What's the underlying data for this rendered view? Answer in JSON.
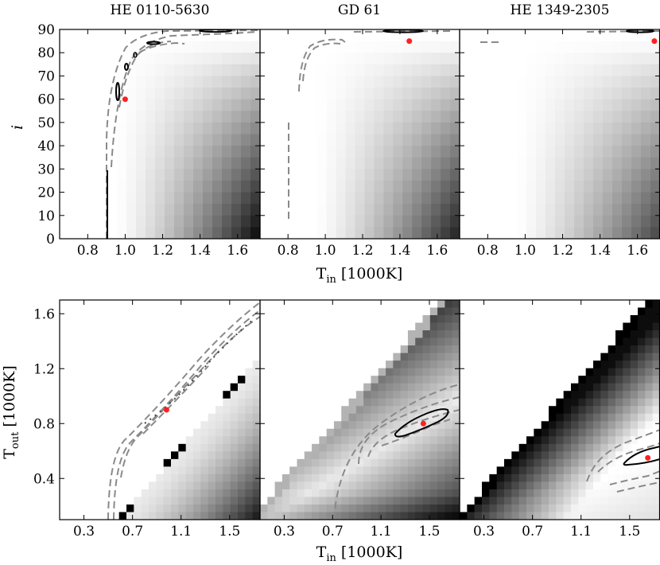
{
  "figure": {
    "top_row": {
      "panel_titles": [
        "HE 0110-5630",
        "GD 61",
        "HE 1349-2305"
      ],
      "y_label": "i",
      "x_label_main": "T",
      "x_label_sub": "in",
      "x_label_unit": " [1000K]"
    },
    "bottom_row": {
      "y_label_main": "T",
      "y_label_sub": "out",
      "y_label_unit": " [1000K]",
      "x_label_main": "T",
      "x_label_sub": "in",
      "x_label_unit": " [1000K]"
    }
  },
  "chart_data": [
    {
      "type": "heatmap",
      "row": "top",
      "panels": [
        "HE 0110-5630",
        "GD 61",
        "HE 1349-2305"
      ],
      "xlabel": "T_in [1000K]",
      "ylabel": "i",
      "xlim": [
        0.65,
        1.72
      ],
      "ylim": [
        0,
        90
      ],
      "xticks": [
        0.8,
        1.0,
        1.2,
        1.4,
        1.6
      ],
      "xtick_labels": [
        "0.8",
        "1.0",
        "1.2",
        "1.4",
        "1.6"
      ],
      "yticks": [
        0,
        10,
        20,
        30,
        40,
        50,
        60,
        70,
        80,
        90
      ],
      "ytick_labels": [
        "0",
        "10",
        "20",
        "30",
        "40",
        "50",
        "60",
        "70",
        "80",
        "90"
      ],
      "best_fit": [
        {
          "panel": "HE 0110-5630",
          "x": 1.0,
          "y": 60
        },
        {
          "panel": "GD 61",
          "x": 1.45,
          "y": 85
        },
        {
          "panel": "HE 1349-2305",
          "x": 1.69,
          "y": 85
        }
      ],
      "invalid_region_below_x": [
        0.96,
        0.85,
        0.0
      ]
    },
    {
      "type": "heatmap",
      "row": "bottom",
      "panels": [
        "HE 0110-5630",
        "GD 61",
        "HE 1349-2305"
      ],
      "xlabel": "T_in [1000K]",
      "ylabel": "T_out [1000K]",
      "xlim": [
        0.1,
        1.75
      ],
      "ylim": [
        0.1,
        1.7
      ],
      "xticks": [
        0.3,
        0.7,
        1.1,
        1.5
      ],
      "xtick_labels": [
        "0.3",
        "0.7",
        "1.1",
        "1.5"
      ],
      "yticks": [
        0.4,
        0.8,
        1.2,
        1.6
      ],
      "ytick_labels": [
        "0.4",
        "0.8",
        "1.2",
        "1.6"
      ],
      "best_fit": [
        {
          "panel": "HE 0110-5630",
          "x": 0.98,
          "y": 0.9
        },
        {
          "panel": "GD 61",
          "x": 1.45,
          "y": 0.8
        },
        {
          "panel": "HE 1349-2305",
          "x": 1.65,
          "y": 0.55
        }
      ]
    }
  ]
}
